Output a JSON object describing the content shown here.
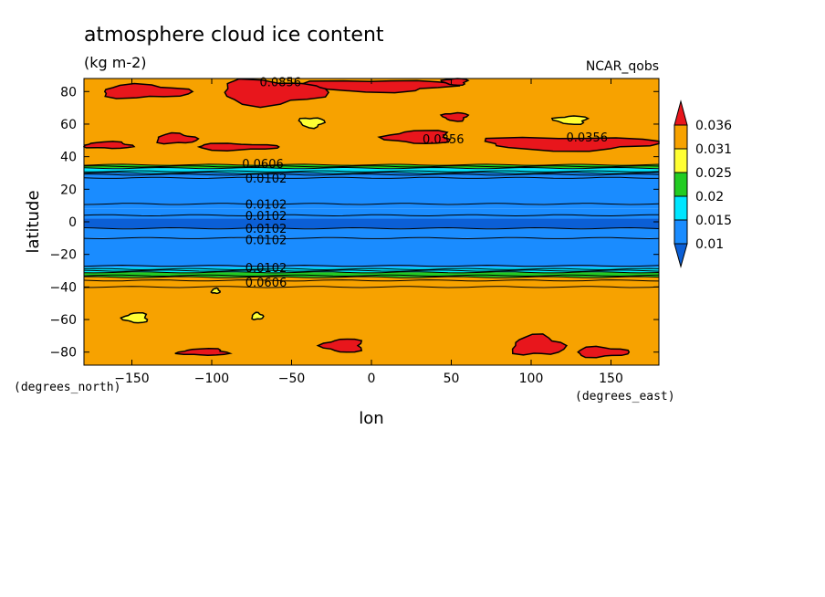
{
  "chart_data": {
    "type": "contour",
    "title": "atmosphere cloud ice content",
    "units": "(kg m-2)",
    "model_label": "NCAR_qobs",
    "xlabel": "lon",
    "ylabel": "latitude",
    "x_unit_label": "(degrees_east)",
    "y_unit_label": "(degrees_north)",
    "xlim": [
      -180,
      180
    ],
    "ylim": [
      -88,
      88
    ],
    "x_ticks": [
      -150,
      -100,
      -50,
      0,
      50,
      100,
      150
    ],
    "x_tick_labels": [
      "−150",
      "−100",
      "−50",
      "0",
      "50",
      "100",
      "150"
    ],
    "y_ticks": [
      -80,
      -60,
      -40,
      -20,
      0,
      20,
      40,
      60,
      80
    ],
    "y_tick_labels": [
      "−80",
      "−60",
      "−40",
      "−20",
      "0",
      "20",
      "40",
      "60",
      "80"
    ],
    "colorbar": {
      "levels": [
        "0.036",
        "0.031",
        "0.025",
        "0.02",
        "0.015",
        "0.01"
      ],
      "colors": [
        "#e8161c",
        "#f7a200",
        "#ffff33",
        "#22cc22",
        "#00e6ff",
        "#1a8cff",
        "#0b5fd6"
      ]
    },
    "zonal_bands": [
      {
        "lat_from": 88,
        "lat_to": 35,
        "color": "#f7a200"
      },
      {
        "lat_from": 35,
        "lat_to": 33,
        "color": "#22cc22"
      },
      {
        "lat_from": 33,
        "lat_to": 30,
        "color": "#00e6ff"
      },
      {
        "lat_from": 30,
        "lat_to": 11,
        "color": "#1a8cff"
      },
      {
        "lat_from": 11,
        "lat_to": 8,
        "color": "#1a8cff"
      },
      {
        "lat_from": 8,
        "lat_to": 2,
        "color": "#1a8cff"
      },
      {
        "lat_from": 2,
        "lat_to": -4,
        "color": "#0b5fd6"
      },
      {
        "lat_from": -4,
        "lat_to": -10,
        "color": "#1a8cff"
      },
      {
        "lat_from": -10,
        "lat_to": -28,
        "color": "#1a8cff"
      },
      {
        "lat_from": -28,
        "lat_to": -31,
        "color": "#00e6ff"
      },
      {
        "lat_from": -31,
        "lat_to": -34,
        "color": "#22cc22"
      },
      {
        "lat_from": -34,
        "lat_to": -40,
        "color": "#f7a200"
      },
      {
        "lat_from": -40,
        "lat_to": -88,
        "color": "#f7a200"
      }
    ],
    "contour_lines_lat": [
      35,
      34,
      33,
      31,
      30,
      29,
      27,
      11,
      4,
      -4,
      -10,
      -27,
      -29,
      -30,
      -31,
      -33,
      -34,
      -36,
      -40
    ],
    "max_regions": [
      {
        "lon": [
          -170,
          -115
        ],
        "lat": [
          84,
          76
        ]
      },
      {
        "lon": [
          -95,
          -30
        ],
        "lat": [
          87,
          72
        ]
      },
      {
        "lon": [
          -40,
          50
        ],
        "lat": [
          87,
          80
        ]
      },
      {
        "lon": [
          45,
          60
        ],
        "lat": [
          88,
          84
        ]
      },
      {
        "lon": [
          10,
          50
        ],
        "lat": [
          56,
          48
        ]
      },
      {
        "lon": [
          -180,
          -150
        ],
        "lat": [
          49,
          45
        ]
      },
      {
        "lon": [
          -135,
          -110
        ],
        "lat": [
          54,
          48
        ]
      },
      {
        "lon": [
          -110,
          -60
        ],
        "lat": [
          48,
          44
        ]
      },
      {
        "lon": [
          70,
          180
        ],
        "lat": [
          52,
          44
        ]
      },
      {
        "lon": [
          45,
          60
        ],
        "lat": [
          67,
          62
        ]
      },
      {
        "lon": [
          -30,
          -5
        ],
        "lat": [
          -72,
          -80
        ]
      },
      {
        "lon": [
          -120,
          -90
        ],
        "lat": [
          -78,
          -82
        ]
      },
      {
        "lon": [
          88,
          120
        ],
        "lat": [
          -70,
          -82
        ]
      },
      {
        "lon": [
          128,
          160
        ],
        "lat": [
          -77,
          -83
        ]
      }
    ],
    "min_regions": [
      {
        "lon": [
          -45,
          -30
        ],
        "lat": [
          64,
          58
        ]
      },
      {
        "lon": [
          115,
          135
        ],
        "lat": [
          65,
          60
        ]
      },
      {
        "lon": [
          -155,
          -140
        ],
        "lat": [
          -56,
          -62
        ]
      },
      {
        "lon": [
          -100,
          -95
        ],
        "lat": [
          -41,
          -44
        ]
      },
      {
        "lon": [
          -75,
          -68
        ],
        "lat": [
          -56,
          -60
        ]
      }
    ],
    "contour_labels": [
      {
        "text": "0.0856",
        "lon": -57,
        "lat": 86
      },
      {
        "text": "0.0356",
        "lon": 45,
        "lat": 51
      },
      {
        "text": "0.0356",
        "lon": 135,
        "lat": 52
      },
      {
        "text": "0.0606",
        "lon": -68,
        "lat": 36
      },
      {
        "text": "0.0102",
        "lon": -66,
        "lat": 27
      },
      {
        "text": "0.0102",
        "lon": -66,
        "lat": 11
      },
      {
        "text": "0.0102",
        "lon": -66,
        "lat": 4
      },
      {
        "text": "0.0102",
        "lon": -66,
        "lat": -4
      },
      {
        "text": "0.0102",
        "lon": -66,
        "lat": -11
      },
      {
        "text": "0.0102",
        "lon": -66,
        "lat": -28
      },
      {
        "text": "0.0606",
        "lon": -66,
        "lat": -37
      }
    ]
  }
}
